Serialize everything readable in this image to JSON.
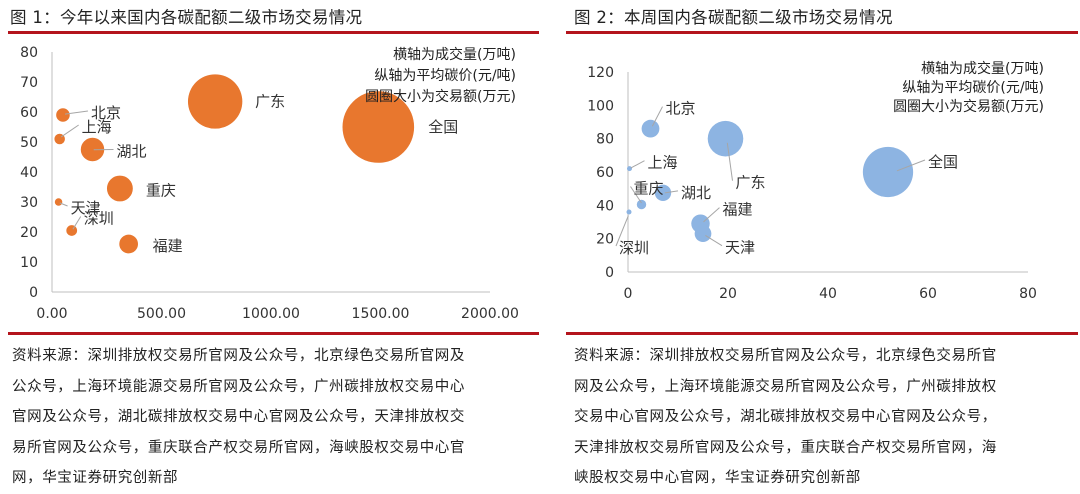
{
  "figures": [
    {
      "title": "图 1：今年以来国内各碳配额二级市场交易情况",
      "source_lines": [
        "资料来源：深圳排放权交易所官网及公众号，北京绿色交易所官网及",
        "公众号，上海环境能源交易所官网及公众号，广州碳排放权交易中心",
        "官网及公众号，湖北碳排放权交易中心官网及公众号，天津排放权交",
        "易所官网及公众号，重庆联合产权交易所官网，海峡股权交易中心官",
        "网，华宝证券研究创新部"
      ]
    },
    {
      "title": "图 2：本周国内各碳配额二级市场交易情况",
      "source_lines": [
        "资料来源：深圳排放权交易所官网及公众号，北京绿色交易所官",
        "网及公众号，上海环境能源交易所官网及公众号，广州碳排放权",
        "交易中心官网及公众号，湖北碳排放权交易中心官网及公众号，",
        "天津排放权交易所官网及公众号，重庆联合产权交易所官网，海",
        "峡股权交易中心官网，华宝证券研究创新部"
      ]
    }
  ],
  "chart_data": [
    {
      "type": "scatter",
      "subtype": "bubble",
      "annotations": [
        "横轴为成交量(万吨)",
        "纵轴为平均碳价(元/吨)",
        "圆圈大小为交易额(万元)"
      ],
      "xlim": [
        0,
        2000
      ],
      "ylim": [
        0,
        80
      ],
      "xticks": [
        "0.00",
        "500.00",
        "1000.00",
        "1500.00",
        "2000.00"
      ],
      "yticks": [
        "0",
        "10",
        "20",
        "30",
        "40",
        "50",
        "60",
        "70",
        "80"
      ],
      "color": "#e8772e",
      "grid": false,
      "points": [
        {
          "label": "北京",
          "x": 50,
          "y": 59,
          "size": 2950
        },
        {
          "label": "上海",
          "x": 35,
          "y": 51,
          "size": 1780
        },
        {
          "label": "湖北",
          "x": 185,
          "y": 47.5,
          "size": 8800
        },
        {
          "label": "广东",
          "x": 745,
          "y": 63.5,
          "size": 47300
        },
        {
          "label": "全国",
          "x": 1490,
          "y": 55,
          "size": 82000
        },
        {
          "label": "重庆",
          "x": 310,
          "y": 34.5,
          "size": 10700
        },
        {
          "label": "天津",
          "x": 30,
          "y": 30,
          "size": 900
        },
        {
          "label": "深圳",
          "x": 90,
          "y": 20.5,
          "size": 1850
        },
        {
          "label": "福建",
          "x": 350,
          "y": 16,
          "size": 5600
        }
      ]
    },
    {
      "type": "scatter",
      "subtype": "bubble",
      "annotations": [
        "横轴为成交量(万吨)",
        "纵轴为平均碳价(元/吨)",
        "圆圈大小为交易额(万元)"
      ],
      "xlim": [
        0,
        80
      ],
      "ylim": [
        0,
        120
      ],
      "xticks": [
        "0",
        "20",
        "40",
        "60",
        "80"
      ],
      "yticks": [
        "0",
        "20",
        "40",
        "60",
        "80",
        "100",
        "120"
      ],
      "color": "#8db4e2",
      "grid": false,
      "points": [
        {
          "label": "北京",
          "x": 4.5,
          "y": 86,
          "size": 390
        },
        {
          "label": "上海",
          "x": 0.3,
          "y": 62,
          "size": 19
        },
        {
          "label": "重庆",
          "x": 2.7,
          "y": 40.5,
          "size": 110
        },
        {
          "label": "湖北",
          "x": 7.0,
          "y": 47.5,
          "size": 330
        },
        {
          "label": "广东",
          "x": 19.5,
          "y": 80,
          "size": 1560
        },
        {
          "label": "福建",
          "x": 14.5,
          "y": 29,
          "size": 420
        },
        {
          "label": "天津",
          "x": 15.0,
          "y": 23,
          "size": 345
        },
        {
          "label": "全国",
          "x": 52,
          "y": 60,
          "size": 3120
        },
        {
          "label": "深圳",
          "x": 0.2,
          "y": 36,
          "size": 8
        }
      ]
    }
  ]
}
